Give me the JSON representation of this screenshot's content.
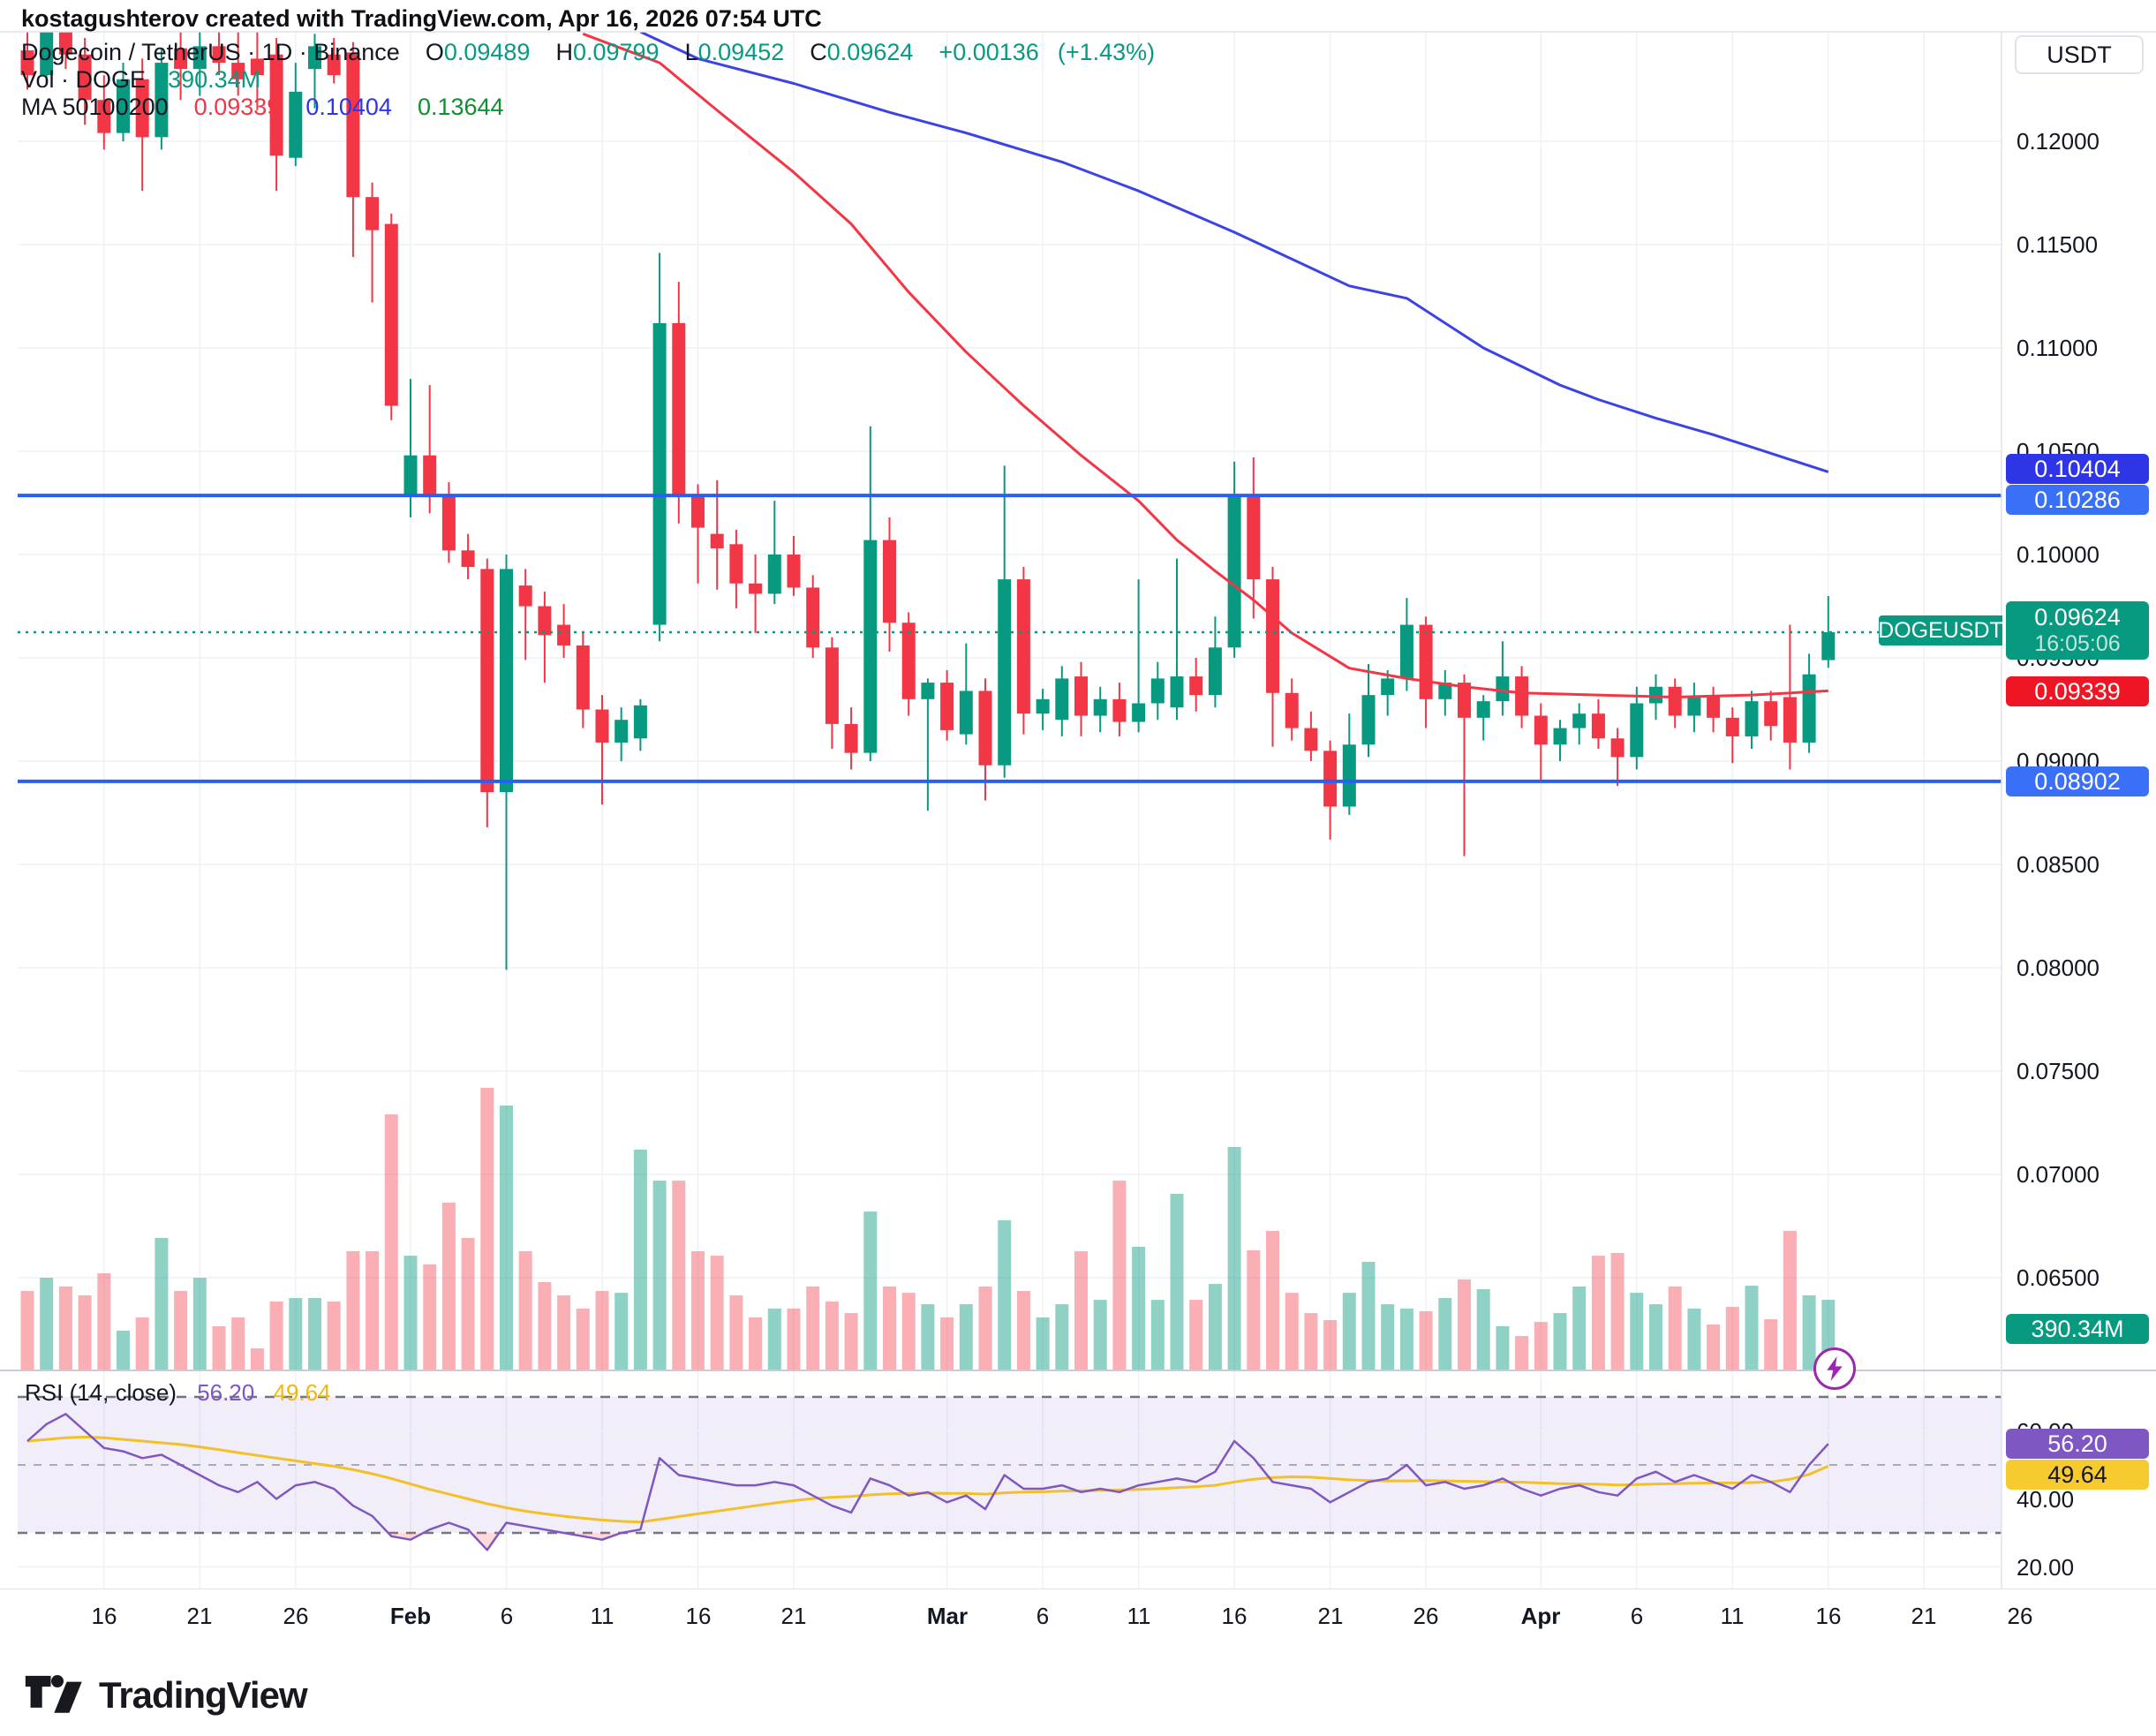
{
  "attribution": "kostagushterov created with TradingView.com, Apr 16, 2026 07:54 UTC",
  "header": {
    "title": "Dogecoin / TetherUS",
    "sep": "·",
    "interval": "1D",
    "exchange": "Binance",
    "o_label": "O",
    "o": "0.09489",
    "h_label": "H",
    "h": "0.09799",
    "l_label": "L",
    "l": "0.09452",
    "c_label": "C",
    "c": "0.09624",
    "change": "+0.00136",
    "change_pct": "(+1.43%)",
    "vol_label": "Vol · DOGE",
    "vol_value": "390.34M",
    "ma_label": "MA 50100200",
    "ma50": "0.09339",
    "ma100": "0.10404",
    "ma200": "0.13644"
  },
  "price_axis": {
    "currency_button": "USDT",
    "ticks": [
      [
        "0.12000",
        0.12
      ],
      [
        "0.11500",
        0.115
      ],
      [
        "0.11000",
        0.11
      ],
      [
        "0.10500",
        0.105
      ],
      [
        "0.10000",
        0.1
      ],
      [
        "0.09500",
        0.095
      ],
      [
        "0.09000",
        0.09
      ],
      [
        "0.08500",
        0.085
      ],
      [
        "0.08000",
        0.08
      ],
      [
        "0.07500",
        0.075
      ],
      [
        "0.07000",
        0.07
      ],
      [
        "0.06500",
        0.065
      ]
    ],
    "badges": {
      "ma100_badge": "0.10404",
      "resistance_badge": "0.10286",
      "last_price_badge": "0.09624",
      "countdown": "16:05:06",
      "ma50_badge": "0.09339",
      "support_badge": "0.08902",
      "volume_badge": "390.34M",
      "rsi_badge": "56.20",
      "rsi_ma_badge": "49.64"
    }
  },
  "rsi_axis_ticks": [
    [
      "60.00",
      60
    ],
    [
      "40.00",
      40
    ],
    [
      "20.00",
      20
    ]
  ],
  "rsi_legend": {
    "label": "RSI (14, close)",
    "value": "56.20",
    "ma_value": "49.64"
  },
  "symbol_price_label": "DOGEUSDT",
  "footer_logo_text": "TradingView",
  "colors": {
    "up": "#089981",
    "down": "#F23645",
    "vol_up": "rgba(8,153,129,0.45)",
    "vol_down": "rgba(242,54,69,0.4)",
    "ma50": "#F23645",
    "ma100": "#3b43e8",
    "ray": "#2760f4",
    "rsi": "#7E57C2",
    "rsi_ma": "#f2c029",
    "grid": "#eef1f6",
    "divider": "#e1e3eb",
    "text": "#131722"
  },
  "chart_data": {
    "type": "candlestick",
    "symbol": "DOGEUSDT",
    "interval": "1D",
    "start_date": "2026-01-12",
    "end_date": "2026-04-16",
    "price_range_visible": [
      0.0635,
      0.1253
    ],
    "levels": {
      "resistance": 0.10286,
      "support": 0.08902,
      "last_price": 0.09624
    },
    "time_ticks": [
      [
        4,
        "16",
        0
      ],
      [
        9,
        "21",
        0
      ],
      [
        14,
        "26",
        0
      ],
      [
        20,
        "Feb",
        1
      ],
      [
        25,
        "6",
        0
      ],
      [
        30,
        "11",
        0
      ],
      [
        35,
        "16",
        0
      ],
      [
        40,
        "21",
        0
      ],
      [
        48,
        "Mar",
        1
      ],
      [
        53,
        "6",
        0
      ],
      [
        58,
        "11",
        0
      ],
      [
        63,
        "16",
        0
      ],
      [
        68,
        "21",
        0
      ],
      [
        73,
        "26",
        0
      ],
      [
        79,
        "Apr",
        1
      ],
      [
        84,
        "6",
        0
      ],
      [
        89,
        "11",
        0
      ],
      [
        94,
        "16",
        0
      ],
      [
        99,
        "21",
        0
      ],
      [
        104,
        "26",
        0
      ]
    ],
    "candles": [
      [
        0.1244,
        0.126,
        0.1225,
        0.1232
      ],
      [
        0.1232,
        0.1262,
        0.1228,
        0.1255
      ],
      [
        0.1255,
        0.1262,
        0.1235,
        0.1242
      ],
      [
        0.1242,
        0.125,
        0.1208,
        0.122
      ],
      [
        0.122,
        0.1232,
        0.1196,
        0.1204
      ],
      [
        0.1204,
        0.1238,
        0.12,
        0.123
      ],
      [
        0.123,
        0.124,
        0.1176,
        0.1202
      ],
      [
        0.1202,
        0.1245,
        0.1196,
        0.1238
      ],
      [
        0.1245,
        0.1256,
        0.122,
        0.1235
      ],
      [
        0.1235,
        0.1258,
        0.1222,
        0.1246
      ],
      [
        0.1246,
        0.1258,
        0.1232,
        0.1238
      ],
      [
        0.1238,
        0.1256,
        0.1222,
        0.123
      ],
      [
        0.124,
        0.1256,
        0.1215,
        0.1232
      ],
      [
        0.1242,
        0.125,
        0.1176,
        0.1193
      ],
      [
        0.1192,
        0.1238,
        0.1188,
        0.1224
      ],
      [
        0.1235,
        0.1252,
        0.1216,
        0.1246
      ],
      [
        0.1242,
        0.125,
        0.1228,
        0.1232
      ],
      [
        0.1243,
        0.1248,
        0.1144,
        0.1173
      ],
      [
        0.1173,
        0.118,
        0.1122,
        0.1157
      ],
      [
        0.116,
        0.1165,
        0.1065,
        0.1072
      ],
      [
        0.1028,
        0.1085,
        0.1018,
        0.1048
      ],
      [
        0.1048,
        0.1082,
        0.102,
        0.1028
      ],
      [
        0.1028,
        0.1035,
        0.0996,
        0.1002
      ],
      [
        0.1002,
        0.101,
        0.0988,
        0.0994
      ],
      [
        0.0993,
        0.0998,
        0.0868,
        0.0885
      ],
      [
        0.0885,
        0.1,
        0.0799,
        0.0993
      ],
      [
        0.0985,
        0.0993,
        0.0949,
        0.0975
      ],
      [
        0.0975,
        0.0982,
        0.0938,
        0.0961
      ],
      [
        0.0966,
        0.0976,
        0.095,
        0.0956
      ],
      [
        0.0956,
        0.0962,
        0.0916,
        0.0925
      ],
      [
        0.0925,
        0.0932,
        0.0879,
        0.0909
      ],
      [
        0.0909,
        0.0926,
        0.09,
        0.092
      ],
      [
        0.0911,
        0.093,
        0.0905,
        0.0927
      ],
      [
        0.0966,
        0.1146,
        0.0958,
        0.1112
      ],
      [
        0.1112,
        0.1132,
        0.1015,
        0.1029
      ],
      [
        0.1029,
        0.1034,
        0.0986,
        0.1013
      ],
      [
        0.101,
        0.1036,
        0.0983,
        0.1003
      ],
      [
        0.1005,
        0.1012,
        0.0974,
        0.0986
      ],
      [
        0.0986,
        0.1,
        0.0962,
        0.0981
      ],
      [
        0.0981,
        0.1026,
        0.0976,
        0.1
      ],
      [
        0.1,
        0.1009,
        0.098,
        0.0984
      ],
      [
        0.0984,
        0.099,
        0.095,
        0.0955
      ],
      [
        0.0955,
        0.096,
        0.0906,
        0.0918
      ],
      [
        0.0918,
        0.0926,
        0.0896,
        0.0904
      ],
      [
        0.0904,
        0.1062,
        0.09,
        0.1007
      ],
      [
        0.1007,
        0.1018,
        0.0953,
        0.0967
      ],
      [
        0.0967,
        0.0972,
        0.0922,
        0.093
      ],
      [
        0.093,
        0.094,
        0.0876,
        0.0938
      ],
      [
        0.0938,
        0.0944,
        0.091,
        0.0915
      ],
      [
        0.0913,
        0.0957,
        0.0908,
        0.0934
      ],
      [
        0.0934,
        0.094,
        0.0881,
        0.0898
      ],
      [
        0.0898,
        0.1043,
        0.0892,
        0.0988
      ],
      [
        0.0988,
        0.0994,
        0.0913,
        0.0923
      ],
      [
        0.0923,
        0.0935,
        0.0915,
        0.093
      ],
      [
        0.092,
        0.0946,
        0.0912,
        0.094
      ],
      [
        0.0941,
        0.0948,
        0.0912,
        0.0922
      ],
      [
        0.0922,
        0.0936,
        0.0914,
        0.093
      ],
      [
        0.093,
        0.0938,
        0.0912,
        0.0919
      ],
      [
        0.0919,
        0.0988,
        0.0914,
        0.0928
      ],
      [
        0.0928,
        0.0948,
        0.092,
        0.094
      ],
      [
        0.0926,
        0.0998,
        0.092,
        0.0941
      ],
      [
        0.0941,
        0.095,
        0.0924,
        0.0932
      ],
      [
        0.0932,
        0.097,
        0.0926,
        0.0955
      ],
      [
        0.0955,
        0.1045,
        0.095,
        0.1029
      ],
      [
        0.1029,
        0.1047,
        0.0969,
        0.0988
      ],
      [
        0.0988,
        0.0994,
        0.0907,
        0.0933
      ],
      [
        0.0933,
        0.094,
        0.091,
        0.0916
      ],
      [
        0.0916,
        0.0924,
        0.09,
        0.0905
      ],
      [
        0.0905,
        0.091,
        0.0862,
        0.0878
      ],
      [
        0.0878,
        0.0923,
        0.0874,
        0.0908
      ],
      [
        0.0908,
        0.0947,
        0.0902,
        0.0932
      ],
      [
        0.0932,
        0.0944,
        0.0922,
        0.094
      ],
      [
        0.094,
        0.0979,
        0.0934,
        0.0966
      ],
      [
        0.0966,
        0.097,
        0.0916,
        0.093
      ],
      [
        0.093,
        0.0944,
        0.0922,
        0.0938
      ],
      [
        0.0938,
        0.0942,
        0.0854,
        0.0921
      ],
      [
        0.0921,
        0.0932,
        0.091,
        0.0929
      ],
      [
        0.0929,
        0.0958,
        0.0922,
        0.0941
      ],
      [
        0.0941,
        0.0946,
        0.0916,
        0.0922
      ],
      [
        0.0922,
        0.0928,
        0.0891,
        0.0908
      ],
      [
        0.0908,
        0.092,
        0.09,
        0.0916
      ],
      [
        0.0916,
        0.0928,
        0.0908,
        0.0923
      ],
      [
        0.0923,
        0.093,
        0.0906,
        0.0911
      ],
      [
        0.0911,
        0.0916,
        0.0888,
        0.0902
      ],
      [
        0.0902,
        0.0936,
        0.0896,
        0.0928
      ],
      [
        0.0928,
        0.0942,
        0.092,
        0.0936
      ],
      [
        0.0936,
        0.094,
        0.0916,
        0.0922
      ],
      [
        0.0922,
        0.0938,
        0.0914,
        0.0931
      ],
      [
        0.0931,
        0.0936,
        0.0914,
        0.0921
      ],
      [
        0.0921,
        0.0926,
        0.0899,
        0.0912
      ],
      [
        0.0912,
        0.0934,
        0.0906,
        0.0929
      ],
      [
        0.0929,
        0.0934,
        0.091,
        0.0917
      ],
      [
        0.0931,
        0.0966,
        0.0896,
        0.0909
      ],
      [
        0.0909,
        0.0952,
        0.0904,
        0.0942
      ],
      [
        0.09489,
        0.09799,
        0.09452,
        0.09624
      ]
    ],
    "volumes_millions": [
      439,
      512,
      464,
      415,
      537,
      220,
      293,
      732,
      439,
      512,
      244,
      293,
      122,
      381,
      400,
      400,
      381,
      659,
      659,
      1415,
      634,
      586,
      927,
      732,
      1562,
      1464,
      659,
      488,
      415,
      342,
      439,
      429,
      1220,
      1049,
      1049,
      659,
      634,
      415,
      293,
      342,
      342,
      464,
      381,
      317,
      878,
      464,
      429,
      366,
      293,
      366,
      464,
      830,
      439,
      293,
      366,
      659,
      390,
      1049,
      683,
      390,
      976,
      390,
      478,
      1235,
      664,
      771,
      429,
      317,
      278,
      429,
      600,
      366,
      342,
      327,
      400,
      503,
      449,
      244,
      190,
      268,
      317,
      464,
      634,
      649,
      429,
      366,
      464,
      342,
      254,
      351,
      468,
      283,
      771,
      415,
      390.34
    ],
    "rsi": [
      57,
      62,
      65,
      60,
      55,
      54,
      52,
      53,
      50,
      47,
      44,
      42,
      45,
      40,
      44,
      45,
      43,
      38,
      35,
      29,
      28,
      31,
      33,
      31,
      25,
      33,
      32,
      31,
      30,
      29,
      28,
      30,
      31,
      52,
      47,
      46,
      45,
      44,
      44,
      45,
      44,
      41,
      38,
      36,
      46,
      44,
      41,
      42,
      39,
      41,
      37,
      47,
      43,
      43,
      44,
      42,
      43,
      42,
      44,
      45,
      46,
      45,
      48,
      57,
      52,
      45,
      44,
      43,
      39,
      42,
      45,
      46,
      50,
      44,
      45,
      43,
      44,
      46,
      43,
      41,
      43,
      44,
      42,
      41,
      46,
      48,
      45,
      47,
      45,
      43,
      47,
      45,
      42,
      50,
      56.2
    ],
    "rsi_ma": [
      57,
      57.5,
      58,
      58.2,
      58,
      57.5,
      57,
      56.5,
      56,
      55.3,
      54.5,
      53.6,
      52.8,
      52,
      51.2,
      50.4,
      49.6,
      48.6,
      47.4,
      46,
      44.4,
      42.8,
      41.4,
      40,
      38.6,
      37.4,
      36.4,
      35.6,
      34.9,
      34.3,
      33.8,
      33.4,
      33.2,
      34,
      34.8,
      35.6,
      36.4,
      37.2,
      38,
      38.8,
      39.5,
      40.1,
      40.5,
      40.7,
      41.2,
      41.5,
      41.6,
      41.7,
      41.6,
      41.6,
      41.4,
      41.8,
      42,
      42.1,
      42.3,
      42.4,
      42.5,
      42.6,
      42.8,
      43,
      43.3,
      43.6,
      44,
      45,
      45.8,
      46.3,
      46.5,
      46.4,
      46,
      45.6,
      45.4,
      45.3,
      45.3,
      45.4,
      45.3,
      45.2,
      45.1,
      45,
      44.9,
      44.7,
      44.5,
      44.4,
      44.3,
      44.1,
      44.2,
      44.4,
      44.5,
      44.6,
      44.7,
      44.7,
      44.8,
      45,
      45.8,
      47.2,
      49.64
    ],
    "rsi_levels": {
      "overbought": 70,
      "middle": 50,
      "oversold": 30
    },
    "ma50_points": [
      [
        29,
        0.1252
      ],
      [
        33,
        0.1238
      ],
      [
        36,
        0.1215
      ],
      [
        40,
        0.1185
      ],
      [
        43,
        0.116
      ],
      [
        46,
        0.1127
      ],
      [
        49,
        0.1098
      ],
      [
        52,
        0.1072
      ],
      [
        55,
        0.1048
      ],
      [
        58,
        0.1026
      ],
      [
        60,
        0.1007
      ],
      [
        62,
        0.0992
      ],
      [
        64,
        0.0978
      ],
      [
        66,
        0.0962
      ],
      [
        69,
        0.0945
      ],
      [
        72,
        0.094
      ],
      [
        75,
        0.0936
      ],
      [
        78,
        0.0933
      ],
      [
        82,
        0.0932
      ],
      [
        86,
        0.0931
      ],
      [
        90,
        0.0932
      ],
      [
        94,
        0.0934
      ]
    ],
    "ma100_points": [
      [
        32,
        0.1253
      ],
      [
        35,
        0.124
      ],
      [
        40,
        0.1228
      ],
      [
        45,
        0.1214
      ],
      [
        49,
        0.1204
      ],
      [
        54,
        0.119
      ],
      [
        58,
        0.1176
      ],
      [
        63,
        0.1156
      ],
      [
        66,
        0.1143
      ],
      [
        69,
        0.113
      ],
      [
        72,
        0.1124
      ],
      [
        76,
        0.11
      ],
      [
        80,
        0.1082
      ],
      [
        82,
        0.1075
      ],
      [
        85,
        0.1066
      ],
      [
        88,
        0.1058
      ],
      [
        90,
        0.1052
      ],
      [
        92,
        0.1046
      ],
      [
        94,
        0.104
      ]
    ]
  }
}
